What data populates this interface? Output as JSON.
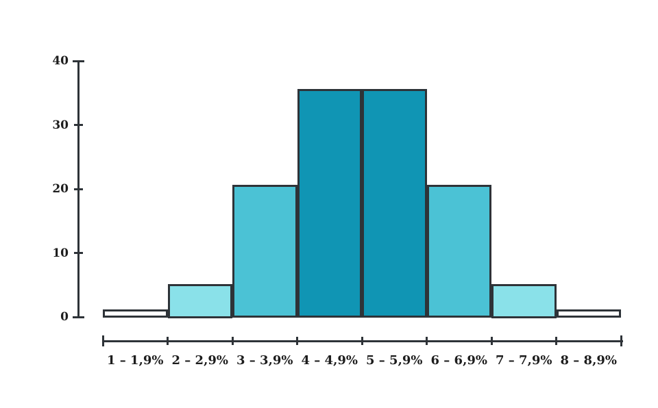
{
  "chart_data": {
    "type": "bar",
    "subtype": "histogram",
    "title": "",
    "xlabel": "",
    "ylabel": "",
    "categories": [
      "1 – 1,9%",
      "2 – 2,9%",
      "3 – 3,9%",
      "4 – 4,9%",
      "5 – 5,9%",
      "6 – 6,9%",
      "7 – 7,9%",
      "8 – 8,9%"
    ],
    "values": [
      1,
      5,
      20.5,
      35.5,
      35.5,
      20.5,
      5,
      1
    ],
    "bar_colors": [
      "#ffffff",
      "#8ae1e9",
      "#4bc2d5",
      "#1095b4",
      "#1095b4",
      "#4bc2d5",
      "#8ae1e9",
      "#ffffff"
    ],
    "y_ticks": [
      0,
      10,
      20,
      30,
      40
    ],
    "ylim": [
      0,
      40
    ],
    "grid": false,
    "legend": "none",
    "outline_color": "#2e3338",
    "text_color": "#1d1d1d",
    "background_color": "#ffffff"
  }
}
